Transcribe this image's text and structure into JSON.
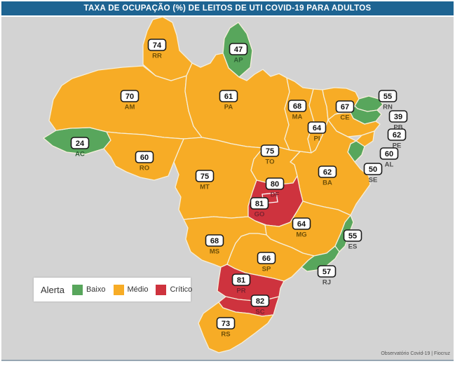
{
  "title": "TAXA DE OCUPAÇÃO (%) DE LEITOS DE UTI COVID-19 PARA ADULTOS",
  "attribution": "Observatório Covid-19 | Fiocruz",
  "colors": {
    "header_bar": "#1E6492",
    "map_background": "#D3D3D3",
    "state_border": "#F6EFDB",
    "label_box_fill": "#FFFFFF",
    "label_box_stroke": "#1A1A1A"
  },
  "legend": {
    "label": "Alerta",
    "items": [
      {
        "level": "baixo",
        "label": "Baixo",
        "color": "#58A65C"
      },
      {
        "level": "medio",
        "label": "Médio",
        "color": "#F7AC26"
      },
      {
        "level": "critico",
        "label": "Crítico",
        "color": "#CE333E"
      }
    ]
  },
  "chart_data": {
    "type": "choropleth",
    "title": "TAXA DE OCUPAÇÃO (%) DE LEITOS DE UTI COVID-19 PARA ADULTOS",
    "unit": "%",
    "region": "Brazil states",
    "legend_title": "Alerta",
    "levels": [
      "baixo",
      "medio",
      "critico"
    ],
    "states": [
      {
        "abbr": "AC",
        "value": 24,
        "level": "baixo"
      },
      {
        "abbr": "AM",
        "value": 70,
        "level": "medio"
      },
      {
        "abbr": "RR",
        "value": 74,
        "level": "medio"
      },
      {
        "abbr": "AP",
        "value": 47,
        "level": "baixo"
      },
      {
        "abbr": "PA",
        "value": 61,
        "level": "medio"
      },
      {
        "abbr": "MA",
        "value": 68,
        "level": "medio"
      },
      {
        "abbr": "PI",
        "value": 64,
        "level": "medio"
      },
      {
        "abbr": "CE",
        "value": 67,
        "level": "medio"
      },
      {
        "abbr": "RN",
        "value": 55,
        "level": "baixo"
      },
      {
        "abbr": "PB",
        "value": 39,
        "level": "baixo"
      },
      {
        "abbr": "PE",
        "value": 62,
        "level": "medio"
      },
      {
        "abbr": "AL",
        "value": 60,
        "level": "medio"
      },
      {
        "abbr": "SE",
        "value": 50,
        "level": "baixo"
      },
      {
        "abbr": "BA",
        "value": 62,
        "level": "medio"
      },
      {
        "abbr": "TO",
        "value": 75,
        "level": "medio"
      },
      {
        "abbr": "MT",
        "value": 75,
        "level": "medio"
      },
      {
        "abbr": "RO",
        "value": 60,
        "level": "medio"
      },
      {
        "abbr": "GO",
        "value": 81,
        "level": "critico"
      },
      {
        "abbr": "DF",
        "value": 80,
        "level": "critico"
      },
      {
        "abbr": "MG",
        "value": 64,
        "level": "medio"
      },
      {
        "abbr": "ES",
        "value": 55,
        "level": "baixo"
      },
      {
        "abbr": "MS",
        "value": 68,
        "level": "medio"
      },
      {
        "abbr": "SP",
        "value": 66,
        "level": "medio"
      },
      {
        "abbr": "RJ",
        "value": 57,
        "level": "baixo"
      },
      {
        "abbr": "PR",
        "value": 81,
        "level": "critico"
      },
      {
        "abbr": "SC",
        "value": 82,
        "level": "critico"
      },
      {
        "abbr": "RS",
        "value": 73,
        "level": "medio"
      }
    ]
  }
}
